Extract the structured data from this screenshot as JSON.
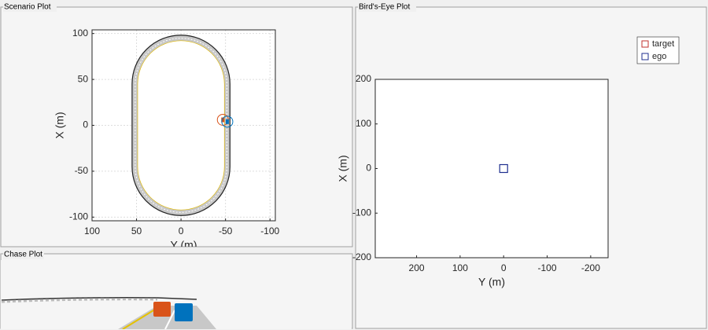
{
  "panels": {
    "scenario": "Scenario Plot",
    "birds_eye": "Bird's-Eye Plot",
    "chase": "Chase Plot"
  },
  "chart_data": [
    {
      "type": "scatter",
      "xlabel": "Y (m)",
      "ylabel": "X (m)",
      "xlim": [
        100,
        -106
      ],
      "xticks": [
        100,
        50,
        0,
        -50,
        -100
      ],
      "ylim": [
        -104,
        104
      ],
      "yticks": [
        -100,
        -50,
        0,
        50,
        100
      ],
      "grid": true,
      "series": [
        {
          "color": "#d95319",
          "x": [
            -47
          ],
          "values": [
            6
          ]
        },
        {
          "color": "#0072bd",
          "x": [
            -52
          ],
          "values": [
            4
          ]
        }
      ]
    },
    {
      "type": "scatter",
      "xlabel": "Y (m)",
      "ylabel": "X (m)",
      "xlim": [
        295,
        -240
      ],
      "xticks": [
        200,
        100,
        0,
        -100,
        -200
      ],
      "ylim": [
        -200,
        200
      ],
      "yticks": [
        -200,
        -100,
        0,
        100,
        200
      ],
      "grid": false,
      "legend": "northeast",
      "series": [
        {
          "name": "target",
          "color": "#c0302c",
          "x": [],
          "values": []
        },
        {
          "name": "ego",
          "color": "#1f2f8f",
          "x": [
            0
          ],
          "values": [
            0
          ]
        }
      ]
    }
  ]
}
